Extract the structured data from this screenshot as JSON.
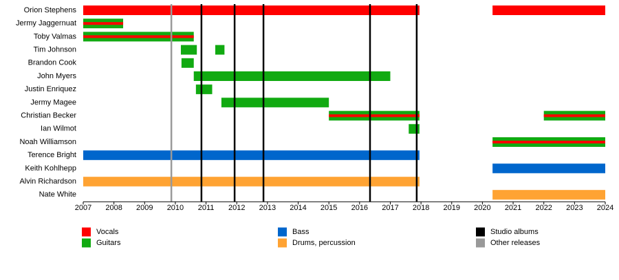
{
  "chart_data": {
    "type": "timeline",
    "xlim": [
      2007,
      2024
    ],
    "xticks": [
      2007,
      2008,
      2009,
      2010,
      2011,
      2012,
      2013,
      2014,
      2015,
      2016,
      2017,
      2018,
      2019,
      2020,
      2021,
      2022,
      2023,
      2024
    ],
    "roles": [
      {
        "name": "Vocals",
        "color": "#ff0000"
      },
      {
        "name": "Guitars",
        "color": "#11aa11"
      },
      {
        "name": "Bass",
        "color": "#0066cc"
      },
      {
        "name": "Drums, percussion",
        "color": "#ffa333"
      }
    ],
    "markers": [
      {
        "name": "Studio albums",
        "color": "#000000",
        "values": [
          2010.85,
          2011.93,
          2012.87,
          2016.34,
          2017.86
        ]
      },
      {
        "name": "Other releases",
        "color": "#999999",
        "values": [
          2009.87
        ]
      }
    ],
    "members": [
      {
        "name": "Orion Stephens",
        "bars": [
          {
            "roles": [
              0
            ],
            "start": 2007,
            "end": 2017.95
          },
          {
            "roles": [
              0
            ],
            "start": 2020.33,
            "end": 2024
          }
        ]
      },
      {
        "name": "Jermy Jaggernuat",
        "bars": [
          {
            "roles": [
              1,
              0
            ],
            "start": 2007,
            "end": 2008.3
          }
        ]
      },
      {
        "name": "Toby Valmas",
        "bars": [
          {
            "roles": [
              1,
              0
            ],
            "start": 2007,
            "end": 2010.6
          }
        ]
      },
      {
        "name": "Tim Johnson",
        "bars": [
          {
            "roles": [
              1
            ],
            "start": 2010.18,
            "end": 2010.7
          },
          {
            "roles": [
              1
            ],
            "start": 2011.3,
            "end": 2011.6
          }
        ]
      },
      {
        "name": "Brandon Cook",
        "bars": [
          {
            "roles": [
              1
            ],
            "start": 2010.2,
            "end": 2010.6
          }
        ]
      },
      {
        "name": "John Myers",
        "bars": [
          {
            "roles": [
              1
            ],
            "start": 2010.6,
            "end": 2017.0
          }
        ]
      },
      {
        "name": "Justin Enriquez",
        "bars": [
          {
            "roles": [
              1
            ],
            "start": 2010.67,
            "end": 2011.2
          }
        ]
      },
      {
        "name": "Jermy Magee",
        "bars": [
          {
            "roles": [
              1
            ],
            "start": 2011.5,
            "end": 2015.0
          }
        ]
      },
      {
        "name": "Christian Becker",
        "bars": [
          {
            "roles": [
              1,
              0
            ],
            "start": 2015.0,
            "end": 2017.95
          },
          {
            "roles": [
              1,
              0
            ],
            "start": 2022.0,
            "end": 2024
          }
        ]
      },
      {
        "name": "Ian Wilmot",
        "bars": [
          {
            "roles": [
              1
            ],
            "start": 2017.6,
            "end": 2017.95
          }
        ]
      },
      {
        "name": "Noah Williamson",
        "bars": [
          {
            "roles": [
              1,
              0
            ],
            "start": 2020.33,
            "end": 2024
          }
        ]
      },
      {
        "name": "Terence Bright",
        "bars": [
          {
            "roles": [
              2
            ],
            "start": 2007,
            "end": 2017.95
          }
        ]
      },
      {
        "name": "Keith Kohlhepp",
        "bars": [
          {
            "roles": [
              2
            ],
            "start": 2020.33,
            "end": 2024
          }
        ]
      },
      {
        "name": "Alvin Richardson",
        "bars": [
          {
            "roles": [
              3
            ],
            "start": 2007,
            "end": 2017.95
          }
        ]
      },
      {
        "name": "Nate White",
        "bars": [
          {
            "roles": [
              3
            ],
            "start": 2020.33,
            "end": 2024
          }
        ]
      }
    ]
  }
}
